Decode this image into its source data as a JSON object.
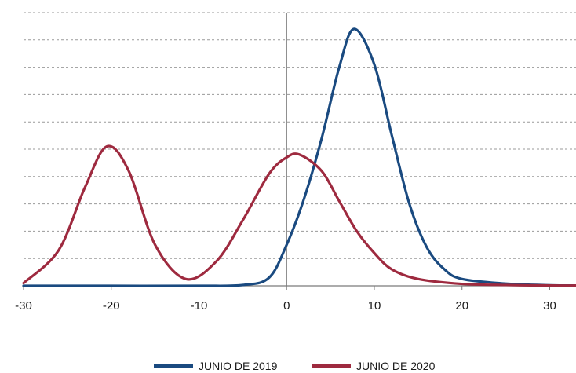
{
  "chart_data": {
    "type": "line",
    "title": "",
    "xlabel": "",
    "ylabel": "",
    "xlim": [
      -30,
      33
    ],
    "ylim": [
      0,
      0.1
    ],
    "x_ticks": [
      -30,
      -20,
      -10,
      0,
      10,
      20,
      30
    ],
    "x_tick_labels": [
      "-30",
      "-20",
      "-10",
      "0",
      "10",
      "20",
      "30"
    ],
    "y_gridlines": [
      0.01,
      0.02,
      0.03,
      0.04,
      0.05,
      0.06,
      0.07,
      0.08,
      0.09,
      0.1
    ],
    "grid": "horizontal dashed",
    "legend_position": "bottom",
    "series": [
      {
        "name": "JUNIO DE 2019",
        "color": "#1a4a80",
        "x": [
          -30,
          -20,
          -10,
          -5,
          -2,
          0,
          2,
          4,
          6,
          7.7,
          10,
          12,
          14,
          16,
          18,
          20,
          25,
          30,
          33
        ],
        "y": [
          0,
          0,
          0,
          0.0003,
          0.003,
          0.015,
          0.032,
          0.054,
          0.08,
          0.094,
          0.081,
          0.055,
          0.03,
          0.014,
          0.006,
          0.0025,
          0.0008,
          0.0002,
          0.0001
        ]
      },
      {
        "name": "JUNIO DE 2020",
        "color": "#9e2a3f",
        "x": [
          -30,
          -26,
          -23,
          -20.5,
          -18,
          -15,
          -11.5,
          -8,
          -5,
          -2,
          0,
          1.5,
          4,
          6,
          8,
          10,
          12,
          15,
          20,
          25,
          30,
          33
        ],
        "y": [
          0.001,
          0.013,
          0.036,
          0.051,
          0.042,
          0.015,
          0.0025,
          0.009,
          0.024,
          0.041,
          0.047,
          0.048,
          0.042,
          0.031,
          0.02,
          0.012,
          0.006,
          0.0025,
          0.0007,
          0.0003,
          0.0001,
          0.0001
        ]
      }
    ]
  }
}
